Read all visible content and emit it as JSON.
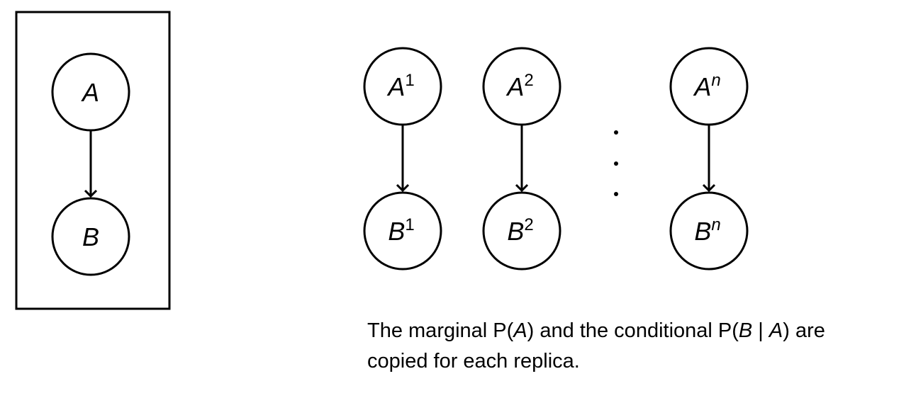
{
  "plate": {
    "nodes": [
      {
        "id": "A",
        "base": "A",
        "sup": ""
      },
      {
        "id": "B",
        "base": "B",
        "sup": ""
      }
    ]
  },
  "replicas": [
    {
      "a_base": "A",
      "a_sup": "1",
      "b_base": "B",
      "b_sup": "1"
    },
    {
      "a_base": "A",
      "a_sup": "2",
      "b_base": "B",
      "b_sup": "2"
    },
    {
      "a_base": "A",
      "a_sup": "n",
      "b_base": "B",
      "b_sup": "n"
    }
  ],
  "ellipsis": "· · ·",
  "caption": {
    "line1_part1": "The marginal P(",
    "line1_var_a": "A",
    "line1_part2": ") and the conditional P(",
    "line1_var_b": "B",
    "line1_part3": " | ",
    "line1_var_a2": "A",
    "line1_part4": ") are",
    "line2": "copied for each replica."
  }
}
